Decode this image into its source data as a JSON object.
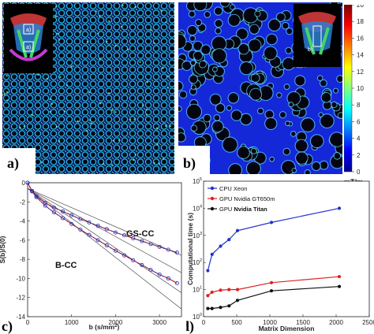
{
  "panels": {
    "a": {
      "label": "a)",
      "inset_labels": [
        "a)",
        "a)"
      ]
    },
    "b": {
      "label": "b)",
      "inset_label": "b)"
    },
    "c": {
      "label": "c)"
    },
    "d": {
      "label": "d)"
    }
  },
  "colorbar": {
    "ticks": [
      "20",
      "18",
      "16",
      "14",
      "12",
      "10",
      "8",
      "6",
      "4",
      "2",
      "0"
    ],
    "unit": "mT/m",
    "min": 0,
    "max": 20,
    "colors": [
      "#00008f",
      "#0000ff",
      "#0080ff",
      "#00ffff",
      "#80ff80",
      "#ffff00",
      "#ff8000",
      "#ff0000",
      "#800000"
    ]
  },
  "chart_data": [
    {
      "type": "line",
      "panel": "c)",
      "ylabel": "S(b)/S(0)",
      "xlabel": "b (s/mm",
      "xlabel_sup": "2",
      "xlabel_close": ")",
      "xlim": [
        0,
        3500
      ],
      "ylim": [
        -14,
        0
      ],
      "xticks": [
        "0",
        "1000",
        "2000",
        "3000"
      ],
      "yticks": [
        "0",
        "-2",
        "-4",
        "-6",
        "-8",
        "-10",
        "-12",
        "-14"
      ],
      "annotations": [
        "GS-CC",
        "B-CC"
      ],
      "series": [
        {
          "x": [
            0,
            100,
            200,
            400,
            600,
            800,
            1000,
            1200,
            1400,
            1600,
            1800,
            2000,
            2200,
            2400,
            2600,
            2800,
            3000,
            3200,
            3400
          ],
          "y": [
            0,
            -0.85,
            -1.4,
            -2.1,
            -2.6,
            -3.0,
            -3.4,
            -3.8,
            -4.15,
            -4.5,
            -4.85,
            -5.2,
            -5.5,
            -5.8,
            -6.1,
            -6.4,
            -6.7,
            -7.0,
            -7.3
          ]
        },
        {
          "x": [
            0,
            100,
            200,
            400,
            600,
            800,
            1000,
            1200,
            1400,
            1600,
            1800,
            2000,
            2200,
            2400,
            2600,
            2800,
            3000,
            3200,
            3400
          ],
          "y": [
            0,
            -0.9,
            -1.5,
            -2.4,
            -3.1,
            -3.7,
            -4.3,
            -4.9,
            -5.45,
            -6.0,
            -6.55,
            -7.1,
            -7.6,
            -8.1,
            -8.6,
            -9.1,
            -9.6,
            -10.0,
            -10.5
          ]
        }
      ],
      "guide_lines": [
        {
          "x": [
            0,
            3500
          ],
          "y": [
            -0.6,
            -7.6
          ]
        },
        {
          "x": [
            0,
            3500
          ],
          "y": [
            -0.6,
            -9.4
          ]
        },
        {
          "x": [
            0,
            3500
          ],
          "y": [
            -0.6,
            -11.5
          ]
        },
        {
          "x": [
            0,
            3500
          ],
          "y": [
            -0.6,
            -13.2
          ]
        }
      ]
    },
    {
      "type": "line",
      "panel": "d)",
      "ylabel": "Computational time (s)",
      "xlabel": "Matrix Dimension",
      "xlim": [
        0,
        2500
      ],
      "ylim_log10": [
        0,
        5
      ],
      "xticks": [
        "0",
        "500",
        "1000",
        "1500",
        "2000",
        "2500"
      ],
      "yticks": [
        {
          "base": "10",
          "exp": "0"
        },
        {
          "base": "10",
          "exp": "1"
        },
        {
          "base": "10",
          "exp": "2"
        },
        {
          "base": "10",
          "exp": "3"
        },
        {
          "base": "10",
          "exp": "4"
        },
        {
          "base": "10",
          "exp": "5"
        }
      ],
      "legend_position": "top-left",
      "series": [
        {
          "name": "CPU Xeon",
          "color": "#2233cc",
          "x": [
            64,
            128,
            256,
            384,
            512,
            1024,
            2048
          ],
          "y": [
            50,
            200,
            400,
            700,
            1500,
            3000,
            10000
          ]
        },
        {
          "name": "GPU Nvidia GT650m",
          "color": "#dd2222",
          "x": [
            64,
            128,
            256,
            384,
            512,
            1024,
            2048
          ],
          "y": [
            6,
            8,
            9.5,
            10,
            10,
            18,
            30
          ]
        },
        {
          "name": "GPU",
          "name_bold": "Nvidia Titan",
          "color": "#111111",
          "x": [
            64,
            128,
            256,
            384,
            512,
            1024,
            2048
          ],
          "y": [
            2,
            2,
            2.2,
            2.5,
            4,
            9,
            13
          ]
        }
      ]
    }
  ]
}
